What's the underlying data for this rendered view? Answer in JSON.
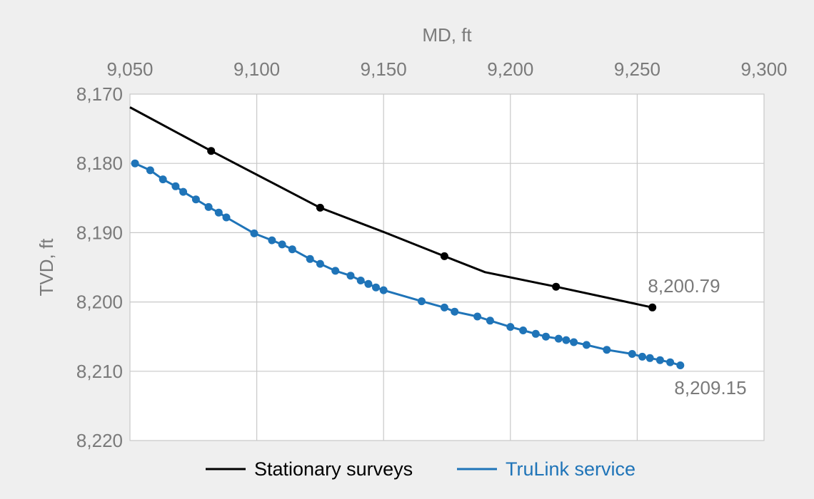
{
  "chart_data": {
    "type": "line",
    "xlabel": "MD, ft",
    "ylabel": "TVD, ft",
    "x_axis_position": "top",
    "y_inverted": true,
    "xlim": [
      9050,
      9300
    ],
    "ylim": [
      8170,
      8220
    ],
    "x_ticks": [
      9050,
      9100,
      9150,
      9200,
      9250,
      9300
    ],
    "x_tick_labels": [
      "9,050",
      "9,100",
      "9,150",
      "9,200",
      "9,250",
      "9,300"
    ],
    "y_ticks": [
      8170,
      8180,
      8190,
      8200,
      8210,
      8220
    ],
    "y_tick_labels": [
      "8,170",
      "8,180",
      "8,190",
      "8,200",
      "8,210",
      "8,220"
    ],
    "grid": true,
    "legend_position": "bottom",
    "series": [
      {
        "name": "Stationary surveys",
        "color": "#000000",
        "line": {
          "x": [
            9050,
            9082,
            9125,
            9150,
            9174,
            9190,
            9218,
            9256
          ],
          "y": [
            8171.9,
            8178.2,
            8186.4,
            8189.9,
            8193.4,
            8195.7,
            8197.8,
            8200.79
          ]
        },
        "markers": {
          "x": [
            9082,
            9125,
            9174,
            9218,
            9256
          ],
          "y": [
            8178.2,
            8186.4,
            8193.4,
            8197.8,
            8200.79
          ]
        },
        "end_label": "8,200.79"
      },
      {
        "name": "TruLink service",
        "color": "#1f74b8",
        "line": {
          "x": [
            9052,
            9058,
            9063,
            9068,
            9071,
            9076,
            9081,
            9085,
            9088,
            9099,
            9106,
            9110,
            9114,
            9121,
            9125,
            9131,
            9137,
            9141,
            9144,
            9147,
            9150,
            9165,
            9174,
            9178,
            9187,
            9192,
            9200,
            9205,
            9210,
            9214,
            9219,
            9222,
            9225,
            9230,
            9238,
            9248,
            9252,
            9255,
            9259,
            9263,
            9267
          ],
          "y": [
            8180.0,
            8181.0,
            8182.3,
            8183.3,
            8184.1,
            8185.2,
            8186.3,
            8187.1,
            8187.8,
            8190.1,
            8191.1,
            8191.7,
            8192.4,
            8193.8,
            8194.5,
            8195.5,
            8196.2,
            8196.9,
            8197.4,
            8197.9,
            8198.3,
            8199.9,
            8200.8,
            8201.4,
            8202.1,
            8202.7,
            8203.6,
            8204.1,
            8204.6,
            8205.0,
            8205.3,
            8205.5,
            8205.8,
            8206.2,
            8206.9,
            8207.5,
            8207.9,
            8208.1,
            8208.4,
            8208.7,
            8209.15
          ]
        },
        "end_label": "8,209.15"
      }
    ]
  }
}
